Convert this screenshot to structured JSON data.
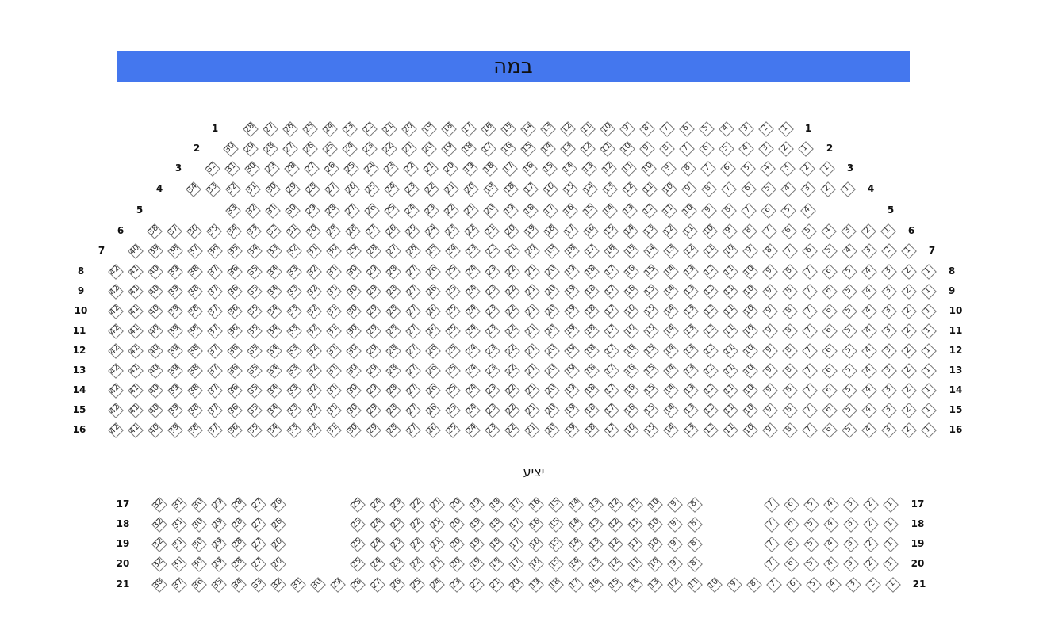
{
  "stage_label": "במה",
  "balcony_label": "יציע",
  "stage_color": "#4477ee",
  "rows": [
    {
      "row": "1",
      "segments": [
        {
          "from": 28,
          "to": 1
        }
      ]
    },
    {
      "row": "2",
      "segments": [
        {
          "from": 30,
          "to": 1
        }
      ]
    },
    {
      "row": "3",
      "segments": [
        {
          "from": 32,
          "to": 1
        }
      ]
    },
    {
      "row": "4",
      "segments": [
        {
          "from": 34,
          "to": 1
        }
      ]
    },
    {
      "row": "5",
      "segments": [
        {
          "from": 33,
          "to": 4
        }
      ]
    },
    {
      "row": "6",
      "segments": [
        {
          "from": 38,
          "to": 1
        }
      ]
    },
    {
      "row": "7",
      "segments": [
        {
          "from": 40,
          "to": 1
        }
      ]
    },
    {
      "row": "8",
      "segments": [
        {
          "from": 42,
          "to": 1
        }
      ]
    },
    {
      "row": "9",
      "segments": [
        {
          "from": 42,
          "to": 1
        }
      ]
    },
    {
      "row": "10",
      "segments": [
        {
          "from": 42,
          "to": 1
        }
      ]
    },
    {
      "row": "11",
      "segments": [
        {
          "from": 42,
          "to": 1
        }
      ]
    },
    {
      "row": "12",
      "segments": [
        {
          "from": 42,
          "to": 1
        }
      ]
    },
    {
      "row": "13",
      "segments": [
        {
          "from": 42,
          "to": 1
        }
      ]
    },
    {
      "row": "14",
      "segments": [
        {
          "from": 42,
          "to": 1
        }
      ]
    },
    {
      "row": "15",
      "segments": [
        {
          "from": 42,
          "to": 1
        }
      ]
    },
    {
      "row": "16",
      "segments": [
        {
          "from": 42,
          "to": 1
        }
      ]
    },
    {
      "row": "17",
      "segments": [
        {
          "from": 32,
          "to": 26
        },
        {
          "from": 25,
          "to": 8
        },
        {
          "from": 7,
          "to": 1
        }
      ]
    },
    {
      "row": "18",
      "segments": [
        {
          "from": 32,
          "to": 26
        },
        {
          "from": 25,
          "to": 8
        },
        {
          "from": 7,
          "to": 1
        }
      ]
    },
    {
      "row": "19",
      "segments": [
        {
          "from": 32,
          "to": 26
        },
        {
          "from": 25,
          "to": 8
        },
        {
          "from": 7,
          "to": 1
        }
      ]
    },
    {
      "row": "20",
      "segments": [
        {
          "from": 32,
          "to": 26
        },
        {
          "from": 25,
          "to": 8
        },
        {
          "from": 7,
          "to": 1
        }
      ]
    },
    {
      "row": "21",
      "segments": [
        {
          "from": 38,
          "to": 1
        }
      ]
    }
  ]
}
